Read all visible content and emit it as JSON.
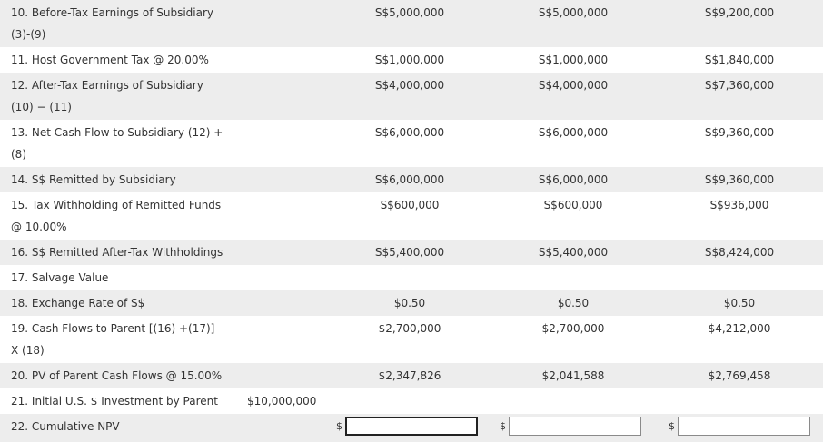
{
  "rows": [
    {
      "label": "10. Before-Tax Earnings of Subsidiary",
      "label2": "(3)-(9)",
      "initial": "",
      "y1": "S$5,000,000",
      "y2": "S$5,000,000",
      "y3": "S$9,200,000"
    },
    {
      "label": "11. Host Government Tax @ 20.00%",
      "label2": "",
      "initial": "",
      "y1": "S$1,000,000",
      "y2": "S$1,000,000",
      "y3": "S$1,840,000"
    },
    {
      "label": "12. After-Tax Earnings of Subsidiary",
      "label2": "(10) − (11)",
      "initial": "",
      "y1": "S$4,000,000",
      "y2": "S$4,000,000",
      "y3": "S$7,360,000"
    },
    {
      "label": "13. Net Cash Flow to Subsidiary (12) +",
      "label2": "(8)",
      "initial": "",
      "y1": "S$6,000,000",
      "y2": "S$6,000,000",
      "y3": "S$9,360,000"
    },
    {
      "label": "14. S$ Remitted by Subsidiary",
      "label2": "",
      "initial": "",
      "y1": "S$6,000,000",
      "y2": "S$6,000,000",
      "y3": "S$9,360,000"
    },
    {
      "label": "15. Tax Withholding of Remitted Funds",
      "label2": "@ 10.00%",
      "initial": "",
      "y1": "S$600,000",
      "y2": "S$600,000",
      "y3": "S$936,000"
    },
    {
      "label": "16. S$ Remitted After-Tax Withholdings",
      "label2": "",
      "initial": "",
      "y1": "S$5,400,000",
      "y2": "S$5,400,000",
      "y3": "S$8,424,000"
    },
    {
      "label": "17. Salvage Value",
      "label2": "",
      "initial": "",
      "y1": "",
      "y2": "",
      "y3": ""
    },
    {
      "label": "18. Exchange Rate of S$",
      "label2": "",
      "initial": "",
      "y1": "$0.50",
      "y2": "$0.50",
      "y3": "$0.50"
    },
    {
      "label": "19. Cash Flows to Parent [(16) +(17)]",
      "label2": "X (18)",
      "initial": "",
      "y1": "$2,700,000",
      "y2": "$2,700,000",
      "y3": "$4,212,000"
    },
    {
      "label": "20. PV of Parent Cash Flows @ 15.00%",
      "label2": "",
      "initial": "",
      "y1": "$2,347,826",
      "y2": "$2,041,588",
      "y3": "$2,769,458"
    },
    {
      "label": "21. Initial U.S. $ Investment by Parent",
      "label2": "",
      "initial": "$10,000,000",
      "y1": "",
      "y2": "",
      "y3": ""
    }
  ],
  "npv_row": {
    "label": "22. Cumulative NPV",
    "currency": "$",
    "inputs": [
      {
        "value": "",
        "placeholder": ""
      },
      {
        "value": "",
        "placeholder": ""
      },
      {
        "value": "",
        "placeholder": ""
      }
    ]
  }
}
